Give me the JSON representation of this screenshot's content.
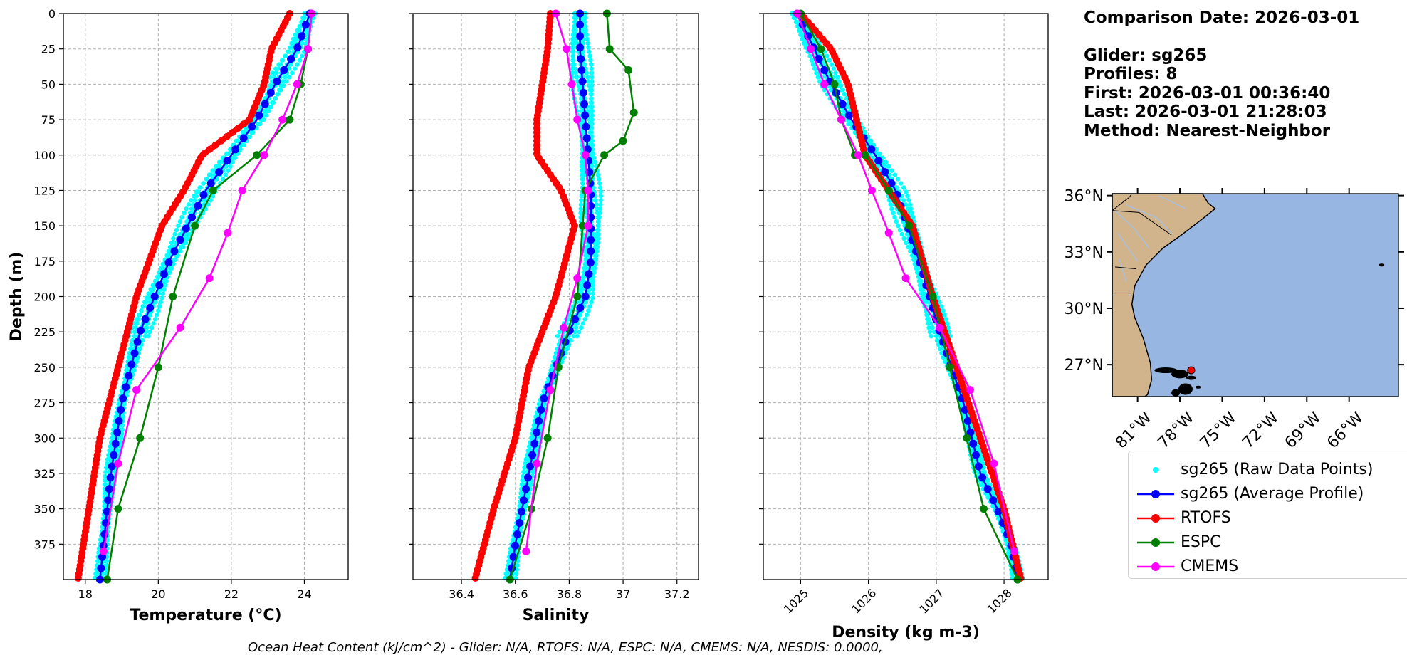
{
  "info": {
    "comparison_date": "Comparison Date: 2026-03-01",
    "glider": "Glider: sg265",
    "profiles": "Profiles: 8",
    "first": "First: 2026-03-01 00:36:40",
    "last": "Last: 2026-03-01 21:28:03",
    "method": "Method: Nearest-Neighbor"
  },
  "footer": "Ocean Heat Content (kJ/cm^2) - Glider: N/A,  RTOFS: N/A,  ESPC: N/A,  CMEMS: N/A,  NESDIS: 0.0000,",
  "colors": {
    "raw": "#00ffff",
    "avg": "#0000ff",
    "rtofs": "#ff0000",
    "espc": "#008000",
    "cmems": "#ff00ff",
    "land": "#d2b48c",
    "ocean": "#98b6e2"
  },
  "legend": [
    {
      "label": "sg265 (Raw Data Points)",
      "color": "#00ffff",
      "style": "dot"
    },
    {
      "label": "sg265 (Average Profile)",
      "color": "#0000ff",
      "style": "line"
    },
    {
      "label": "RTOFS",
      "color": "#ff0000",
      "style": "line"
    },
    {
      "label": "ESPC",
      "color": "#008000",
      "style": "line"
    },
    {
      "label": "CMEMS",
      "color": "#ff00ff",
      "style": "line"
    }
  ],
  "chart_data": [
    {
      "type": "line",
      "xlabel": "Temperature (°C)",
      "ylabel": "Depth (m)",
      "xlim": [
        17.4,
        25.2
      ],
      "ylim": [
        400,
        0
      ],
      "xticks": [
        18,
        20,
        22,
        24
      ],
      "yticks": [
        0,
        25,
        50,
        75,
        100,
        125,
        150,
        175,
        200,
        225,
        250,
        275,
        300,
        325,
        350,
        375
      ],
      "grid": true,
      "series": [
        {
          "name": "sg265 (Average Profile)",
          "x": [
            24.15,
            23.8,
            23.2,
            22.7,
            22.0,
            21.3,
            20.3,
            19.5,
            19.0,
            18.7,
            18.5,
            18.4
          ],
          "y": [
            0,
            25,
            50,
            75,
            100,
            125,
            175,
            225,
            275,
            325,
            375,
            400
          ]
        },
        {
          "name": "RTOFS",
          "x": [
            23.6,
            23.1,
            22.9,
            22.5,
            21.2,
            20.7,
            20.1,
            19.4,
            18.9,
            18.4,
            17.8
          ],
          "y": [
            0,
            25,
            50,
            75,
            100,
            125,
            150,
            200,
            250,
            300,
            400
          ]
        },
        {
          "name": "ESPC",
          "x": [
            24.2,
            24.1,
            23.9,
            23.6,
            22.7,
            21.5,
            21.0,
            20.4,
            20.0,
            19.5,
            18.9,
            18.6
          ],
          "y": [
            0,
            25,
            50,
            75,
            100,
            125,
            150,
            200,
            250,
            300,
            350,
            400
          ]
        },
        {
          "name": "CMEMS",
          "x": [
            24.2,
            24.1,
            23.8,
            23.4,
            22.9,
            22.3,
            21.9,
            21.4,
            20.6,
            19.4,
            18.9,
            18.5
          ],
          "y": [
            0,
            25,
            50,
            75,
            100,
            125,
            155,
            187,
            222,
            266,
            318,
            380
          ]
        }
      ]
    },
    {
      "type": "line",
      "xlabel": "Salinity",
      "xlim": [
        36.22,
        37.28
      ],
      "ylim": [
        400,
        0
      ],
      "xticks": [
        36.4,
        36.6,
        36.8,
        37.0,
        37.2
      ],
      "grid": true,
      "series": [
        {
          "name": "sg265 (Average Profile)",
          "x": [
            36.84,
            36.84,
            36.85,
            36.86,
            36.87,
            36.88,
            36.88,
            36.86,
            36.8,
            36.7,
            36.65,
            36.6,
            36.58
          ],
          "y": [
            0,
            25,
            50,
            75,
            100,
            125,
            175,
            200,
            225,
            275,
            325,
            375,
            400
          ]
        },
        {
          "name": "RTOFS",
          "x": [
            36.73,
            36.72,
            36.7,
            36.68,
            36.68,
            36.77,
            36.82,
            36.75,
            36.65,
            36.6,
            36.52,
            36.45
          ],
          "y": [
            0,
            25,
            50,
            75,
            100,
            125,
            150,
            200,
            250,
            300,
            350,
            400
          ]
        },
        {
          "name": "ESPC",
          "x": [
            36.94,
            36.95,
            37.02,
            37.04,
            37.0,
            36.93,
            36.86,
            36.85,
            36.83,
            36.76,
            36.72,
            36.66,
            36.58
          ],
          "y": [
            0,
            25,
            40,
            70,
            90,
            100,
            125,
            150,
            200,
            250,
            300,
            350,
            400
          ]
        },
        {
          "name": "CMEMS",
          "x": [
            36.75,
            36.79,
            36.81,
            36.83,
            36.86,
            36.87,
            36.87,
            36.83,
            36.78,
            36.73,
            36.68,
            36.64
          ],
          "y": [
            0,
            25,
            50,
            75,
            100,
            125,
            150,
            187,
            222,
            266,
            318,
            380
          ]
        }
      ]
    },
    {
      "type": "line",
      "xlabel": "Density (kg m-3)",
      "xlim": [
        1024.45,
        1028.65
      ],
      "ylim": [
        400,
        0
      ],
      "xticks": [
        1025,
        1026,
        1027,
        1028
      ],
      "grid": true,
      "series": [
        {
          "name": "sg265 (Average Profile)",
          "x": [
            1024.95,
            1025.2,
            1025.45,
            1025.75,
            1026.1,
            1026.4,
            1026.75,
            1027.05,
            1027.4,
            1027.65,
            1027.9,
            1028.1,
            1028.2
          ],
          "y": [
            0,
            25,
            50,
            75,
            100,
            125,
            175,
            225,
            275,
            325,
            350,
            375,
            400
          ]
        },
        {
          "name": "RTOFS",
          "x": [
            1025.0,
            1025.45,
            1025.7,
            1025.95,
            1026.3,
            1026.65,
            1026.95,
            1027.3,
            1027.65,
            1028.0,
            1028.25
          ],
          "y": [
            0,
            25,
            50,
            100,
            125,
            150,
            200,
            250,
            300,
            350,
            400
          ]
        },
        {
          "name": "ESPC",
          "x": [
            1025.0,
            1025.3,
            1025.5,
            1025.6,
            1025.8,
            1025.95,
            1026.3,
            1026.6,
            1026.95,
            1027.2,
            1027.45,
            1027.7,
            1028.2
          ],
          "y": [
            0,
            25,
            50,
            75,
            100,
            100,
            125,
            150,
            200,
            250,
            300,
            350,
            400
          ]
        },
        {
          "name": "CMEMS",
          "x": [
            1024.95,
            1025.15,
            1025.35,
            1025.6,
            1025.85,
            1026.05,
            1026.3,
            1026.55,
            1027.05,
            1027.5,
            1027.85,
            1028.15
          ],
          "y": [
            0,
            25,
            50,
            75,
            100,
            125,
            155,
            187,
            222,
            266,
            318,
            380
          ]
        }
      ]
    }
  ],
  "map": {
    "lat_labels": [
      "36°N",
      "33°N",
      "30°N",
      "27°N"
    ],
    "lon_labels": [
      "81°W",
      "78°W",
      "75°W",
      "72°W",
      "69°W",
      "66°W"
    ],
    "lon_range": [
      -82.8,
      -62.5
    ],
    "lat_range": [
      25.3,
      36.1
    ]
  }
}
